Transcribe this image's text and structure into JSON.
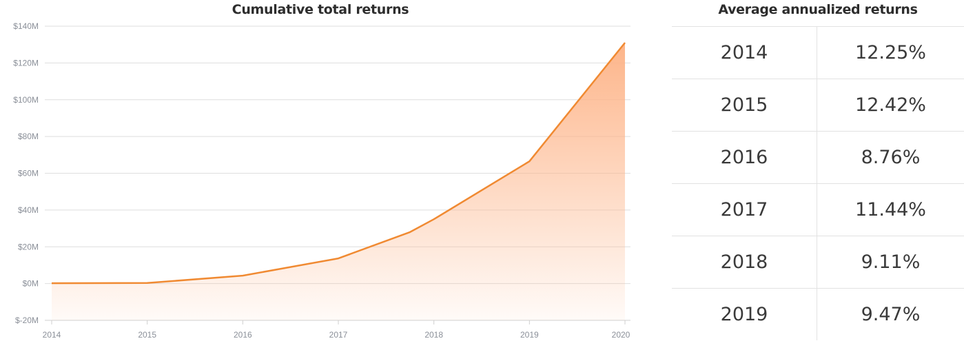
{
  "chart_data": {
    "type": "area",
    "title": "Cumulative total returns",
    "xlabel": "",
    "ylabel": "",
    "x": [
      "2014",
      "2015",
      "2016",
      "2017",
      "2017.75",
      "2018",
      "2019",
      "2020"
    ],
    "x_numeric": [
      2014,
      2015,
      2016,
      2017,
      2017.75,
      2018,
      2019,
      2020
    ],
    "values": [
      0.2,
      0.3,
      4.3,
      13.7,
      28.0,
      35.0,
      66.5,
      131.0
    ],
    "xticks": [
      "2014",
      "2015",
      "2016",
      "2017",
      "2018",
      "2019",
      "2020"
    ],
    "yticks": [
      "$-20M",
      "$0M",
      "$20M",
      "$40M",
      "$60M",
      "$80M",
      "$100M",
      "$120M",
      "$140M"
    ],
    "ylim": [
      -20,
      140
    ],
    "xlim": [
      2014,
      2020
    ],
    "grid": true,
    "line_color": "#f08a32",
    "fill_color": "#fdb98e"
  },
  "table": {
    "title": "Average annualized returns",
    "rows": [
      {
        "year": "2014",
        "value": "12.25%"
      },
      {
        "year": "2015",
        "value": "12.42%"
      },
      {
        "year": "2016",
        "value": "8.76%"
      },
      {
        "year": "2017",
        "value": "11.44%"
      },
      {
        "year": "2018",
        "value": "9.11%"
      },
      {
        "year": "2019",
        "value": "9.47%"
      }
    ]
  }
}
